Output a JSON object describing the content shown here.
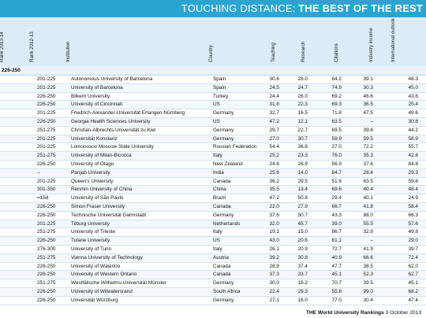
{
  "title": {
    "part1": "TOUCHING DISTANCE:",
    "part2": "THE BEST OF THE REST"
  },
  "headers": {
    "rank_2013_14": "Rank 2013-14",
    "rank_2012_13": "Rank 2012-13",
    "institution": "Institution",
    "country": "Country",
    "teaching": "Teaching",
    "research": "Research",
    "citations": "Citations",
    "industry_income": "Industry income",
    "international_outlook": "International outlook"
  },
  "section": "226-250",
  "rows": [
    {
      "rank12": "201-225",
      "institution": "Autonomous University of Barcelona",
      "country": "Spain",
      "teaching": "30.6",
      "research": "28.0",
      "citations": "64.2",
      "industry": "39.1",
      "intl": "48.3"
    },
    {
      "rank12": "201-225",
      "institution": "University of Barcelona",
      "country": "Spain",
      "teaching": "24.5",
      "research": "24.7",
      "citations": "74.9",
      "industry": "30.3",
      "intl": "45.0"
    },
    {
      "rank12": "226-250",
      "institution": "Bilkent University",
      "country": "Turkey",
      "teaching": "24.4",
      "research": "26.0",
      "citations": "69.2",
      "industry": "46.6",
      "intl": "43.6"
    },
    {
      "rank12": "226-250",
      "institution": "University of Cincinnati",
      "country": "US",
      "teaching": "31.8",
      "research": "22.3",
      "citations": "69.3",
      "industry": "36.5",
      "intl": "25.4"
    },
    {
      "rank12": "201-225",
      "institution": "Friedrich-Alexander-Universität Erlangen-Nürnberg",
      "country": "Germany",
      "teaching": "32.7",
      "research": "16.5",
      "citations": "71.8",
      "industry": "47.5",
      "intl": "49.6"
    },
    {
      "rank12": "226-250",
      "institution": "Georgia Health Sciences University",
      "country": "US",
      "teaching": "47.2",
      "research": "12.1",
      "citations": "63.5",
      "industry": "–",
      "intl": "30.8"
    },
    {
      "rank12": "251-275",
      "institution": "Christian-Albrechts-Universität zu Kiel",
      "country": "Germany",
      "teaching": "29.7",
      "research": "22.7",
      "citations": "69.5",
      "industry": "39.8",
      "intl": "44.2"
    },
    {
      "rank12": "201-225",
      "institution": "Universität Konstanz",
      "country": "Germany",
      "teaching": "27.0",
      "research": "30.7",
      "citations": "59.9",
      "industry": "59.5",
      "intl": "58.9"
    },
    {
      "rank12": "201-225",
      "institution": "Lomonosov Moscow State University",
      "country": "Russian Federation",
      "teaching": "54.4",
      "research": "36.6",
      "citations": "27.0",
      "industry": "72.2",
      "intl": "55.7"
    },
    {
      "rank12": "251-275",
      "institution": "University of Milan-Bicocca",
      "country": "Italy",
      "teaching": "25.2",
      "research": "23.3",
      "citations": "76.0",
      "industry": "35.3",
      "intl": "42.8"
    },
    {
      "rank12": "226-250",
      "institution": "University of Otago",
      "country": "New Zealand",
      "teaching": "24.6",
      "research": "26.9",
      "citations": "56.9",
      "industry": "37.6",
      "intl": "84.8"
    },
    {
      "rank12": "–",
      "institution": "Panjab University",
      "country": "India",
      "teaching": "25.8",
      "research": "14.0",
      "citations": "84.7",
      "industry": "28.4",
      "intl": "29.3"
    },
    {
      "rank12": "201-225",
      "institution": "Queen's University",
      "country": "Canada",
      "teaching": "36.2",
      "research": "29.5",
      "citations": "51.6",
      "industry": "63.5",
      "intl": "59.8"
    },
    {
      "rank12": "301-350",
      "institution": "Renmin University of China",
      "country": "China",
      "teaching": "35.5",
      "research": "13.4",
      "citations": "69.6",
      "industry": "40.4",
      "intl": "48.4"
    },
    {
      "rank12": "=158",
      "institution": "University of São Paulo",
      "country": "Brazil",
      "teaching": "47.2",
      "research": "50.8",
      "citations": "29.4",
      "industry": "40.1",
      "intl": "24.9"
    },
    {
      "rank12": "226-250",
      "institution": "Simon Fraser University",
      "country": "Canada",
      "teaching": "22.0",
      "research": "27.9",
      "citations": "66.7",
      "industry": "41.8",
      "intl": "58.4"
    },
    {
      "rank12": "226-250",
      "institution": "Technische Universität Darmstadt",
      "country": "Germany",
      "teaching": "37.6",
      "research": "30.7",
      "citations": "43.3",
      "industry": "88.0",
      "intl": "66.3"
    },
    {
      "rank12": "201-225",
      "institution": "Tilburg University",
      "country": "Netherlands",
      "teaching": "32.0",
      "research": "45.7",
      "citations": "39.0",
      "industry": "55.5",
      "intl": "57.6"
    },
    {
      "rank12": "251-275",
      "institution": "University of Trieste",
      "country": "Italy",
      "teaching": "19.1",
      "research": "15.0",
      "citations": "86.7",
      "industry": "32.9",
      "intl": "49.8"
    },
    {
      "rank12": "226-250",
      "institution": "Tulane University",
      "country": "US",
      "teaching": "43.0",
      "research": "20.6",
      "citations": "61.1",
      "industry": "–",
      "intl": "29.0"
    },
    {
      "rank12": "276-300",
      "institution": "University of Turin",
      "country": "Italy",
      "teaching": "26.1",
      "research": "20.9",
      "citations": "72.7",
      "industry": "41.9",
      "intl": "39.7"
    },
    {
      "rank12": "251-275",
      "institution": "Vienna University of Technology",
      "country": "Austria",
      "teaching": "39.2",
      "research": "30.8",
      "citations": "40.9",
      "industry": "66.6",
      "intl": "72.4"
    },
    {
      "rank12": "226-250",
      "institution": "University of Waterloo",
      "country": "Canada",
      "teaching": "28.9",
      "research": "37.4",
      "citations": "47.7",
      "industry": "38.5",
      "intl": "62.0"
    },
    {
      "rank12": "226-250",
      "institution": "University of Western Ontario",
      "country": "Canada",
      "teaching": "37.3",
      "research": "33.7",
      "citations": "45.1",
      "industry": "52.3",
      "intl": "62.7"
    },
    {
      "rank12": "251-275",
      "institution": "Westfälische Wilhelms-Universität Münster",
      "country": "Germany",
      "teaching": "30.0",
      "research": "18.2",
      "citations": "70.7",
      "industry": "39.5",
      "intl": "45.1"
    },
    {
      "rank12": "226-250",
      "institution": "University of Witwatersrand",
      "country": "South Africa",
      "teaching": "22.4",
      "research": "29.3",
      "citations": "55.8",
      "industry": "99.0",
      "intl": "68.2"
    },
    {
      "rank12": "226-250",
      "institution": "Universität Würzburg",
      "country": "Germany",
      "teaching": "27.1",
      "research": "16.0",
      "citations": "77.0",
      "industry": "30.4",
      "intl": "47.4"
    }
  ],
  "footer": {
    "source": "THE World University Rankings",
    "date": "3 October 2013"
  },
  "colors": {
    "title_bar": "#2aa5d1",
    "header_bg": "#dcecf6"
  }
}
